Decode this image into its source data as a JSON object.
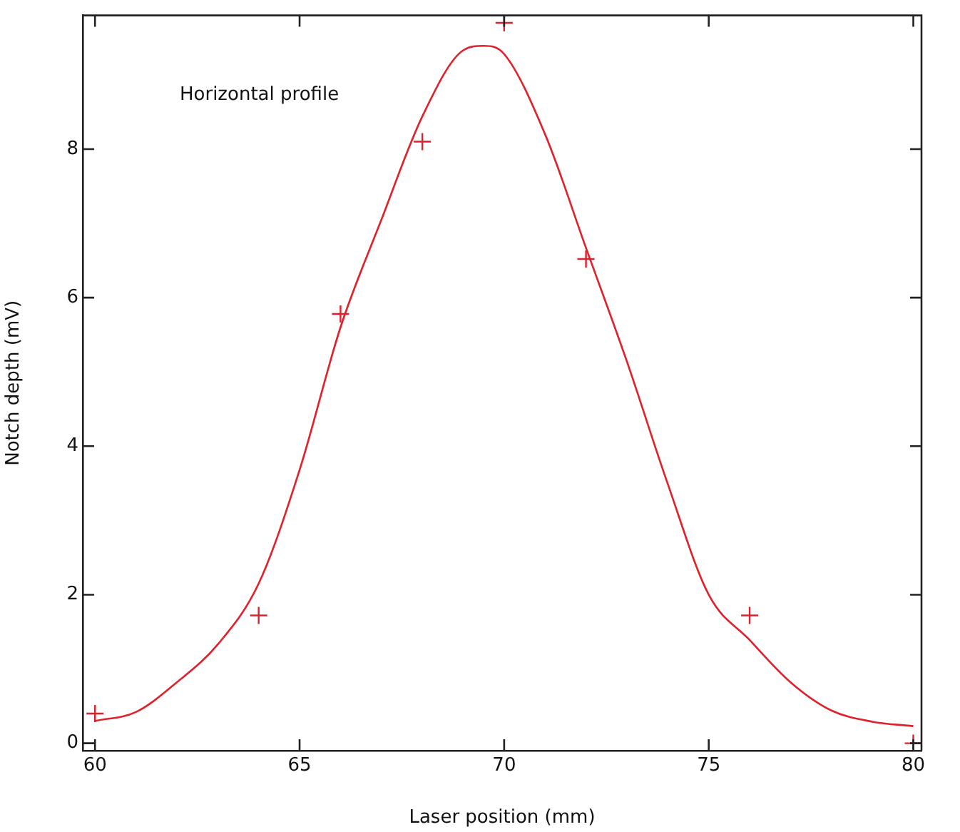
{
  "chart_data": {
    "type": "scatter",
    "xlabel": "Laser position (mm)",
    "ylabel": "Notch depth (mV)",
    "annotations": [
      "Horizontal profile"
    ],
    "xlim": [
      59.7,
      80.2
    ],
    "ylim": [
      -0.1,
      9.8
    ],
    "xticks": [
      60,
      65,
      70,
      75,
      80
    ],
    "yticks": [
      0,
      2,
      4,
      6,
      8
    ],
    "grid": false,
    "legend": false,
    "marker": "cross",
    "series": [
      {
        "color": "#e0202a",
        "x": [
          60,
          64,
          66,
          68,
          70,
          72,
          76,
          80
        ],
        "values": [
          0.4,
          1.72,
          5.78,
          8.1,
          9.7,
          6.52,
          1.72,
          0
        ]
      },
      {
        "type": "line",
        "color": "#e0202a",
        "marker": "none",
        "x": [
          60,
          61,
          62,
          63,
          64,
          65,
          66,
          67,
          68,
          69,
          69.5,
          70,
          71,
          72,
          73,
          74,
          75,
          76,
          77,
          78,
          79,
          80
        ],
        "values": [
          0.3,
          0.42,
          0.82,
          1.33,
          2.15,
          3.68,
          5.6,
          7.05,
          8.44,
          9.33,
          9.39,
          9.28,
          8.2,
          6.67,
          5.14,
          3.49,
          2.0,
          1.39,
          0.82,
          0.44,
          0.29,
          0.23
        ]
      }
    ]
  }
}
